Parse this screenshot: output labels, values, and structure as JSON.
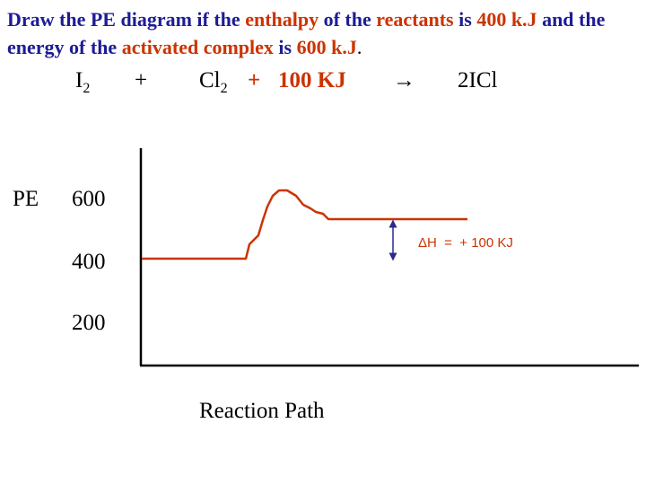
{
  "question": {
    "w1": "Draw the PE diagram if the",
    "w2": "enthalpy",
    "w3": "of the",
    "w4": "reactants",
    "w5": "is",
    "w6": "400 k.J",
    "w7": "and the energy of the",
    "w8": "activated complex",
    "w9": "is",
    "w10": "600 k.J",
    "w11": "."
  },
  "equation": {
    "reactant1": "I",
    "reactant1_sub": "2",
    "plus1": "+",
    "reactant2": "Cl",
    "reactant2_sub": "2",
    "plus2": "+",
    "energy": "100 KJ",
    "arrow": "→",
    "product": "2ICl"
  },
  "diagram": {
    "y_axis_label": "PE",
    "tick_600": "600",
    "tick_400": "400",
    "tick_200": "200",
    "x_axis_label": "Reaction Path",
    "delta_h": "ΔH  =  + 100 KJ",
    "colors": {
      "curve": "#cc3300",
      "axes": "#000000",
      "arrow": "#2a2a8a"
    }
  }
}
